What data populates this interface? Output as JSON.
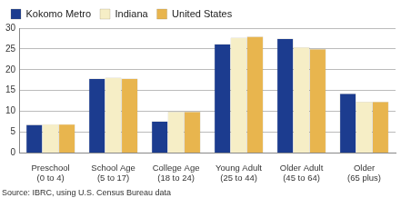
{
  "chart_data": {
    "type": "bar",
    "categories": [
      [
        "Preschool",
        "(0 to 4)"
      ],
      [
        "School Age",
        "(5 to 17)"
      ],
      [
        "College Age",
        "(18 to 24)"
      ],
      [
        "Young Adult",
        "(25 to 44)"
      ],
      [
        "Older Adult",
        "(45 to 64)"
      ],
      [
        "Older",
        "(65 plus)"
      ]
    ],
    "series": [
      {
        "name": "Kokomo Metro",
        "color": "#1c3c8f",
        "values": [
          6.8,
          17.9,
          7.6,
          26.2,
          27.5,
          14.3
        ]
      },
      {
        "name": "Indiana",
        "color": "#f6eec6",
        "values": [
          6.9,
          18.1,
          9.9,
          27.7,
          25.4,
          12.3
        ]
      },
      {
        "name": "United States",
        "color": "#e8b54e",
        "values": [
          6.9,
          17.9,
          9.9,
          28.0,
          25.0,
          12.3
        ]
      }
    ],
    "ylim": [
      0,
      30
    ],
    "yticks": [
      0,
      5,
      10,
      15,
      20,
      25,
      30
    ],
    "grid": true,
    "legend": "top-left",
    "source": "Source: IBRC, using U.S. Census Bureau data"
  }
}
